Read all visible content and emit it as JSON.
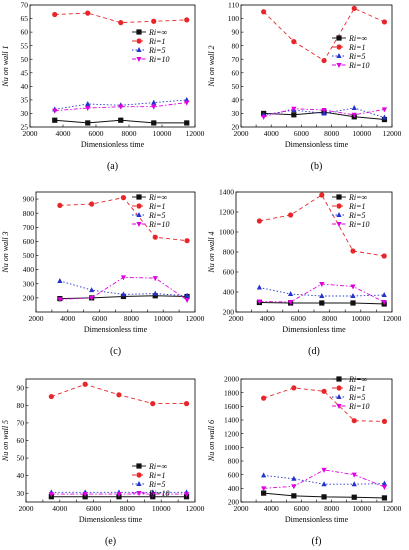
{
  "figure": {
    "xlabel": "Dimensionless time",
    "legend": [
      "Ri=∞",
      "Ri=1",
      "Ri=5",
      "Ri=10"
    ]
  },
  "series_styles": [
    {
      "color": "#111111",
      "marker": "square"
    },
    {
      "color": "#e8262a",
      "marker": "circle"
    },
    {
      "color": "#2233cc",
      "marker": "triangle-up"
    },
    {
      "color": "#e000e0",
      "marker": "triangle-down"
    }
  ],
  "chart_data": [
    {
      "type": "line",
      "caption": "(a)",
      "ylabel": "Nu on wall 1",
      "x": [
        3500,
        5500,
        7500,
        9500,
        11500
      ],
      "xlim": [
        2000,
        12000
      ],
      "xticks": [
        2000,
        4000,
        6000,
        8000,
        10000,
        12000
      ],
      "ylim": [
        25,
        70
      ],
      "yticks": [
        25,
        30,
        35,
        40,
        45,
        50,
        55,
        60,
        65,
        70
      ],
      "series": [
        {
          "name": "Ri=∞",
          "values": [
            27.5,
            26.5,
            27.5,
            26.5,
            26.5
          ]
        },
        {
          "name": "Ri=1",
          "values": [
            66.5,
            67,
            63.5,
            64,
            64.5
          ]
        },
        {
          "name": "Ri=5",
          "values": [
            31.5,
            33.5,
            33,
            34,
            35
          ]
        },
        {
          "name": "Ri=10",
          "values": [
            31,
            32,
            32.5,
            32.5,
            34
          ]
        }
      ]
    },
    {
      "type": "line",
      "caption": "(b)",
      "ylabel": "Nu on wall 2",
      "x": [
        3500,
        5500,
        7500,
        9500,
        11500
      ],
      "xlim": [
        2000,
        12000
      ],
      "xticks": [
        2000,
        3000,
        4000,
        5000,
        6000,
        7000,
        8000,
        9000,
        10000,
        11000,
        12000
      ],
      "ylim": [
        20,
        110
      ],
      "yticks": [
        20,
        30,
        40,
        50,
        60,
        70,
        80,
        90,
        100,
        110
      ],
      "series": [
        {
          "name": "Ri=∞",
          "values": [
            30,
            29,
            31,
            27.5,
            25.5
          ]
        },
        {
          "name": "Ri=1",
          "values": [
            105,
            83,
            69,
            107.5,
            97.5
          ]
        },
        {
          "name": "Ri=5",
          "values": [
            29,
            32.5,
            30,
            34,
            27
          ]
        },
        {
          "name": "Ri=10",
          "values": [
            27.5,
            33.5,
            32.5,
            29,
            33
          ]
        }
      ]
    },
    {
      "type": "line",
      "caption": "(c)",
      "ylabel": "Nu on wall 3",
      "x": [
        3500,
        5500,
        7500,
        9500,
        11500
      ],
      "xlim": [
        2000,
        12000
      ],
      "xticks": [
        2000,
        3000,
        4000,
        5000,
        6000,
        7000,
        8000,
        9000,
        10000,
        11000,
        12000
      ],
      "ylim": [
        100,
        950
      ],
      "yticks": [
        200,
        300,
        400,
        500,
        600,
        700,
        800,
        900
      ],
      "series": [
        {
          "name": "Ri=∞",
          "values": [
            195,
            200,
            210,
            215,
            210
          ]
        },
        {
          "name": "Ri=1",
          "values": [
            855,
            865,
            910,
            630,
            605
          ]
        },
        {
          "name": "Ri=5",
          "values": [
            320,
            255,
            225,
            230,
            215
          ]
        },
        {
          "name": "Ri=10",
          "values": [
            190,
            200,
            345,
            340,
            185
          ]
        }
      ]
    },
    {
      "type": "line",
      "caption": "(d)",
      "ylabel": "Nu on wall 4",
      "x": [
        3500,
        5500,
        7500,
        9500,
        11500
      ],
      "xlim": [
        2000,
        12000
      ],
      "xticks": [
        2000,
        3000,
        4000,
        5000,
        6000,
        7000,
        8000,
        9000,
        10000,
        11000,
        12000
      ],
      "ylim": [
        200,
        1400
      ],
      "yticks": [
        200,
        400,
        600,
        800,
        1000,
        1200,
        1400
      ],
      "series": [
        {
          "name": "Ri=∞",
          "values": [
            295,
            290,
            290,
            290,
            280
          ]
        },
        {
          "name": "Ri=1",
          "values": [
            1110,
            1170,
            1370,
            810,
            760
          ]
        },
        {
          "name": "Ri=5",
          "values": [
            445,
            380,
            360,
            360,
            370
          ]
        },
        {
          "name": "Ri=10",
          "values": [
            305,
            300,
            480,
            455,
            300
          ]
        }
      ]
    },
    {
      "type": "line",
      "caption": "(e)",
      "ylabel": "Nu on wall 5",
      "x": [
        3500,
        5500,
        7500,
        9500,
        11500
      ],
      "xlim": [
        2000,
        12000
      ],
      "xticks": [
        2000,
        3000,
        4000,
        5000,
        6000,
        7000,
        8000,
        9000,
        10000,
        11000,
        12000
      ],
      "ylim": [
        25,
        95
      ],
      "yticks": [
        30,
        40,
        50,
        60,
        70,
        80,
        90
      ],
      "series": [
        {
          "name": "Ri=∞",
          "values": [
            28,
            28,
            28,
            28,
            28
          ]
        },
        {
          "name": "Ri=1",
          "values": [
            85,
            92,
            86,
            81,
            81
          ]
        },
        {
          "name": "Ri=5",
          "values": [
            30.5,
            30.5,
            30.5,
            30.5,
            30.5
          ]
        },
        {
          "name": "Ri=10",
          "values": [
            29.5,
            29.5,
            29.5,
            29.5,
            29.5
          ]
        }
      ]
    },
    {
      "type": "line",
      "caption": "(f)",
      "ylabel": "Nu on wall 6",
      "x": [
        3500,
        5500,
        7500,
        9500,
        11500
      ],
      "xlim": [
        2000,
        12000
      ],
      "xticks": [
        2000,
        3000,
        4000,
        5000,
        6000,
        7000,
        8000,
        9000,
        10000,
        11000,
        12000
      ],
      "ylim": [
        200,
        2000
      ],
      "yticks": [
        200,
        400,
        600,
        800,
        1000,
        1200,
        1400,
        1600,
        1800,
        2000
      ],
      "series": [
        {
          "name": "Ri=∞",
          "values": [
            330,
            290,
            275,
            270,
            260
          ]
        },
        {
          "name": "Ri=1",
          "values": [
            1720,
            1870,
            1820,
            1390,
            1380
          ]
        },
        {
          "name": "Ri=5",
          "values": [
            590,
            540,
            460,
            460,
            470
          ]
        },
        {
          "name": "Ri=10",
          "values": [
            400,
            430,
            670,
            600,
            420
          ]
        }
      ]
    }
  ]
}
